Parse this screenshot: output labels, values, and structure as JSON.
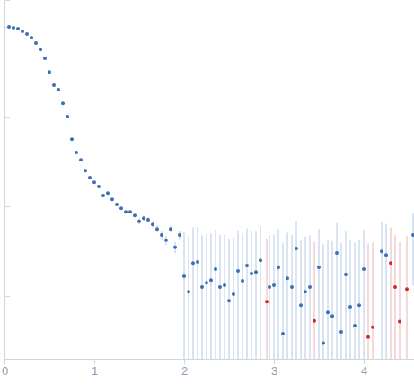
{
  "chart_data": {
    "type": "scatter",
    "log": "y",
    "tick_labels": "x",
    "xlim": [
      0,
      4.56
    ],
    "ylim": [
      0.2,
      2000
    ],
    "xticks": [
      0,
      1,
      2,
      3,
      4
    ],
    "yticks": [
      1,
      10,
      100,
      1000
    ],
    "series": [
      {
        "color": "#3a6fb5",
        "marker": "circle",
        "x": [
          0.05,
          0.1,
          0.15,
          0.2,
          0.25,
          0.3,
          0.35,
          0.4,
          0.45,
          0.5,
          0.55,
          0.6,
          0.65,
          0.7,
          0.75,
          0.8,
          0.85,
          0.9,
          0.95,
          1.0,
          1.05,
          1.1,
          1.15,
          1.2,
          1.25,
          1.3,
          1.35,
          1.4,
          1.45,
          1.5,
          1.55,
          1.6,
          1.65,
          1.7,
          1.75,
          1.8,
          1.85,
          1.9,
          1.95,
          2.0,
          2.05,
          2.1,
          2.15,
          2.2,
          2.25,
          2.3,
          2.35,
          2.4,
          2.45,
          2.5,
          2.55,
          2.6,
          2.65,
          2.7,
          2.75,
          2.8,
          2.85,
          2.95,
          3.0,
          3.05,
          3.1,
          3.15,
          3.2,
          3.25,
          3.3,
          3.35,
          3.4,
          3.5,
          3.55,
          3.6,
          3.65,
          3.7,
          3.75,
          3.8,
          3.85,
          3.9,
          3.95,
          4.0,
          4.2,
          4.25,
          4.55
        ],
        "values": [
          1000,
          977,
          955,
          891,
          832,
          759,
          661,
          562,
          447,
          316,
          224,
          200,
          141,
          100,
          56,
          40,
          33,
          25,
          21,
          18.6,
          16.6,
          13.2,
          14.1,
          12,
          10.5,
          9.5,
          8.7,
          8.7,
          7.9,
          6.8,
          7.4,
          7.1,
          6.3,
          5.6,
          4.8,
          4.2,
          5.6,
          3.5,
          4.8,
          1.66,
          1.12,
          2.34,
          2.4,
          1.26,
          1.41,
          1.51,
          2.0,
          1.26,
          1.32,
          0.89,
          1.05,
          1.91,
          1.48,
          2.19,
          1.78,
          1.86,
          2.51,
          1.26,
          1.32,
          2.09,
          0.38,
          1.58,
          1.26,
          3.39,
          0.79,
          1.12,
          1.26,
          2.09,
          0.3,
          0.66,
          0.6,
          3.02,
          0.4,
          1.74,
          0.76,
          0.47,
          0.79,
          2.0,
          3.16,
          2.88,
          4.8
        ],
        "errors": [
          0,
          0,
          0,
          0,
          0,
          0,
          0,
          0,
          0,
          0,
          0,
          0,
          0,
          0,
          0,
          0,
          0,
          0,
          0,
          0,
          0,
          0,
          0,
          0,
          0,
          0,
          0,
          0,
          0,
          0.5,
          0.5,
          0.5,
          0.5,
          0.5,
          0.5,
          0.5,
          0.5,
          0.5,
          0.5,
          3.5,
          3.5,
          3.5,
          3.5,
          3.5,
          3.5,
          3.5,
          3.5,
          3.5,
          3.5,
          3.5,
          3.5,
          3.5,
          3.5,
          3.5,
          3.5,
          3.5,
          3.5,
          3.5,
          3.5,
          3.5,
          3.5,
          3.5,
          3.5,
          3.5,
          3.5,
          3.5,
          3.5,
          3.5,
          3.5,
          3.5,
          3.5,
          3.5,
          3.5,
          3.5,
          3.5,
          3.5,
          3.5,
          3.5,
          3.5,
          3.5,
          3.5
        ]
      },
      {
        "color": "#d62728",
        "marker": "circle",
        "x": [
          2.92,
          3.45,
          4.05,
          4.1,
          4.3,
          4.35,
          4.4,
          4.48
        ],
        "values": [
          0.87,
          0.53,
          0.35,
          0.45,
          2.34,
          1.26,
          0.52,
          1.2
        ],
        "errors": [
          3.5,
          3.5,
          3.5,
          3.5,
          3.5,
          3.5,
          3.5,
          3.5
        ]
      }
    ]
  }
}
